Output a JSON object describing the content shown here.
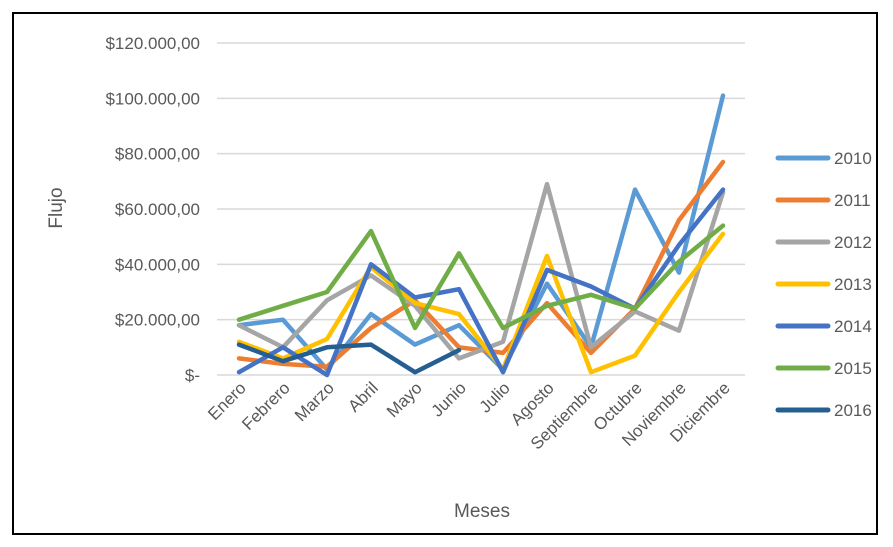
{
  "chart_data": {
    "type": "line",
    "title": "",
    "xlabel": "Meses",
    "ylabel": "Flujo",
    "ylim": [
      0,
      120000
    ],
    "ytick_values": [
      0,
      20000,
      40000,
      60000,
      80000,
      100000,
      120000
    ],
    "ytick_labels": [
      "$-",
      "$20.000,00",
      "$40.000,00",
      "$60.000,00",
      "$80.000,00",
      "$100.000,00",
      "$120.000,00"
    ],
    "categories": [
      "Enero",
      "Febrero",
      "Marzo",
      "Abril",
      "Mayo",
      "Junio",
      "Julio",
      "Agosto",
      "Septiembre",
      "Octubre",
      "Noviembre",
      "Diciembre"
    ],
    "grid": true,
    "legend_position": "right",
    "series": [
      {
        "name": "2010",
        "color": "#5B9BD5",
        "values": [
          18000,
          20000,
          2000,
          22000,
          11000,
          18000,
          2000,
          33000,
          10000,
          67000,
          37000,
          101000
        ]
      },
      {
        "name": "2011",
        "color": "#ED7D31",
        "values": [
          6000,
          4000,
          3000,
          17000,
          27000,
          10000,
          8000,
          26000,
          8000,
          24000,
          56000,
          77000
        ]
      },
      {
        "name": "2012",
        "color": "#A5A5A5",
        "values": [
          18000,
          10000,
          27000,
          36000,
          25000,
          6000,
          12000,
          69000,
          10000,
          23000,
          16000,
          66000
        ]
      },
      {
        "name": "2013",
        "color": "#FFC000",
        "values": [
          12000,
          6000,
          13000,
          39000,
          26000,
          22000,
          2000,
          43000,
          1000,
          7000,
          30000,
          51000
        ]
      },
      {
        "name": "2014",
        "color": "#4472C4",
        "values": [
          1000,
          10000,
          0,
          40000,
          28000,
          31000,
          1000,
          38000,
          32000,
          24000,
          47000,
          67000
        ]
      },
      {
        "name": "2015",
        "color": "#70AD47",
        "values": [
          20000,
          25000,
          30000,
          52000,
          17000,
          44000,
          17000,
          25000,
          29000,
          24000,
          41000,
          54000
        ]
      },
      {
        "name": "2016",
        "color": "#255E91",
        "values": [
          11000,
          5000,
          10000,
          11000,
          1000,
          9000,
          null,
          null,
          null,
          null,
          null,
          null
        ]
      }
    ]
  }
}
